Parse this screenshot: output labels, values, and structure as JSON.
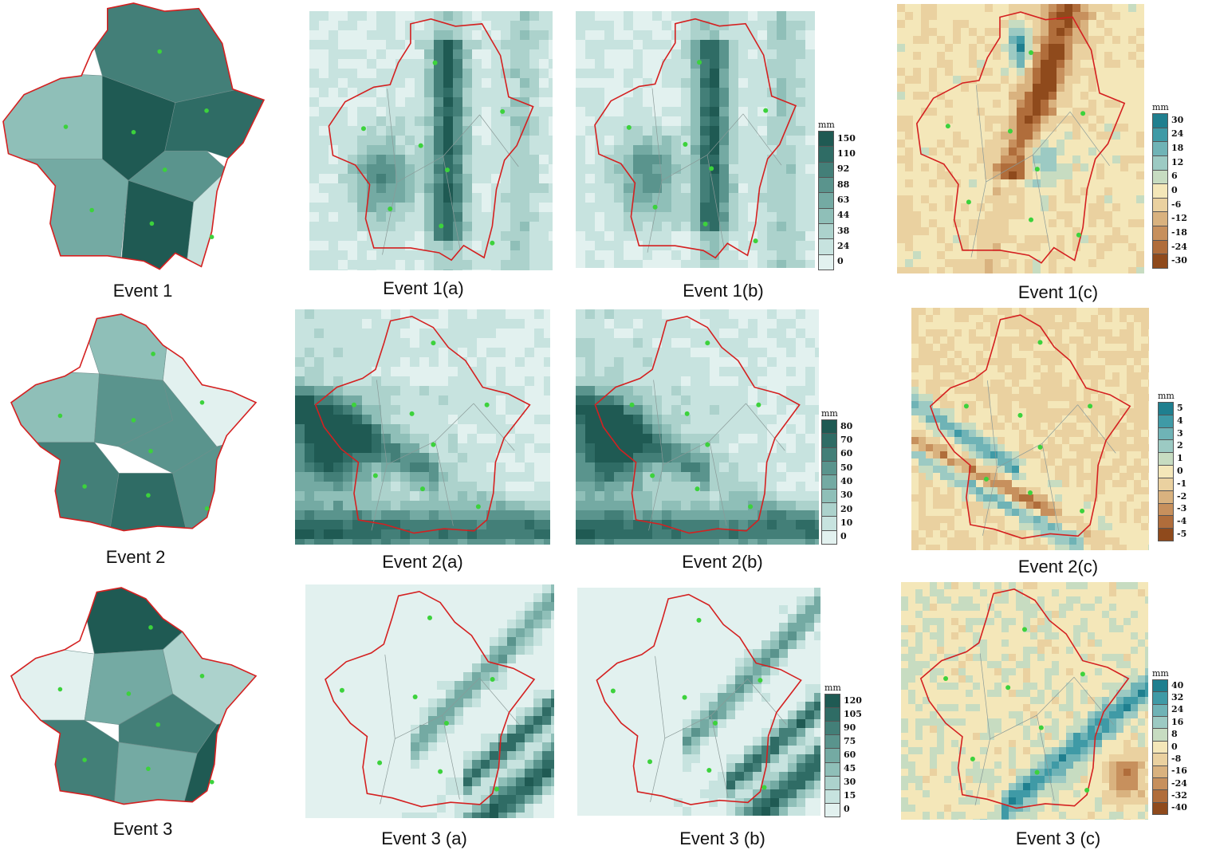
{
  "captions": {
    "e1": "Event 1",
    "e1a": "Event 1(a)",
    "e1b": "Event 1(b)",
    "e1c": "Event 1(c)",
    "e2": "Event 2",
    "e2a": "Event 2(a)",
    "e2b": "Event 2(b)",
    "e2c": "Event 2(c)",
    "e3": "Event 3",
    "e3a": "Event 3 (a)",
    "e3b": "Event 3 (b)",
    "e3c": "Event 3 (c)"
  },
  "legends": {
    "l1ab": {
      "unit": "mm",
      "labels": [
        "150",
        "110",
        "92",
        "88",
        "63",
        "44",
        "38",
        "24",
        "0"
      ]
    },
    "l1c": {
      "unit": "mm",
      "labels": [
        "30",
        "24",
        "18",
        "12",
        "6",
        "0",
        "-6",
        "-12",
        "-18",
        "-24",
        "-30"
      ]
    },
    "l2ab": {
      "unit": "mm",
      "labels": [
        "80",
        "70",
        "60",
        "50",
        "40",
        "30",
        "20",
        "10",
        "0"
      ]
    },
    "l2c": {
      "unit": "mm",
      "labels": [
        "5",
        "4",
        "3",
        "2",
        "1",
        "0",
        "-1",
        "-2",
        "-3",
        "-4",
        "-5"
      ]
    },
    "l3ab": {
      "unit": "mm",
      "labels": [
        "120",
        "105",
        "90",
        "75",
        "60",
        "45",
        "30",
        "15",
        "0"
      ]
    },
    "l3c": {
      "unit": "mm",
      "labels": [
        "40",
        "32",
        "24",
        "16",
        "8",
        "0",
        "-8",
        "-16",
        "-24",
        "-32",
        "-40"
      ]
    }
  },
  "colors": {
    "boundary": "#d42020",
    "station": "#3cd23c",
    "teal_ramp": [
      "#e2f1ef",
      "#c7e3df",
      "#acd2cc",
      "#8fbfb8",
      "#74aaa3",
      "#5a948d",
      "#437f78",
      "#2f6c65",
      "#1f5a53"
    ],
    "diverging": [
      "#1f7f8f",
      "#3f9aa6",
      "#6fb3b6",
      "#9ccac3",
      "#c7dcc1",
      "#f4e7b9",
      "#ead1a0",
      "#d9b27f",
      "#c7905d",
      "#b06d3b",
      "#8f4a1c"
    ]
  }
}
